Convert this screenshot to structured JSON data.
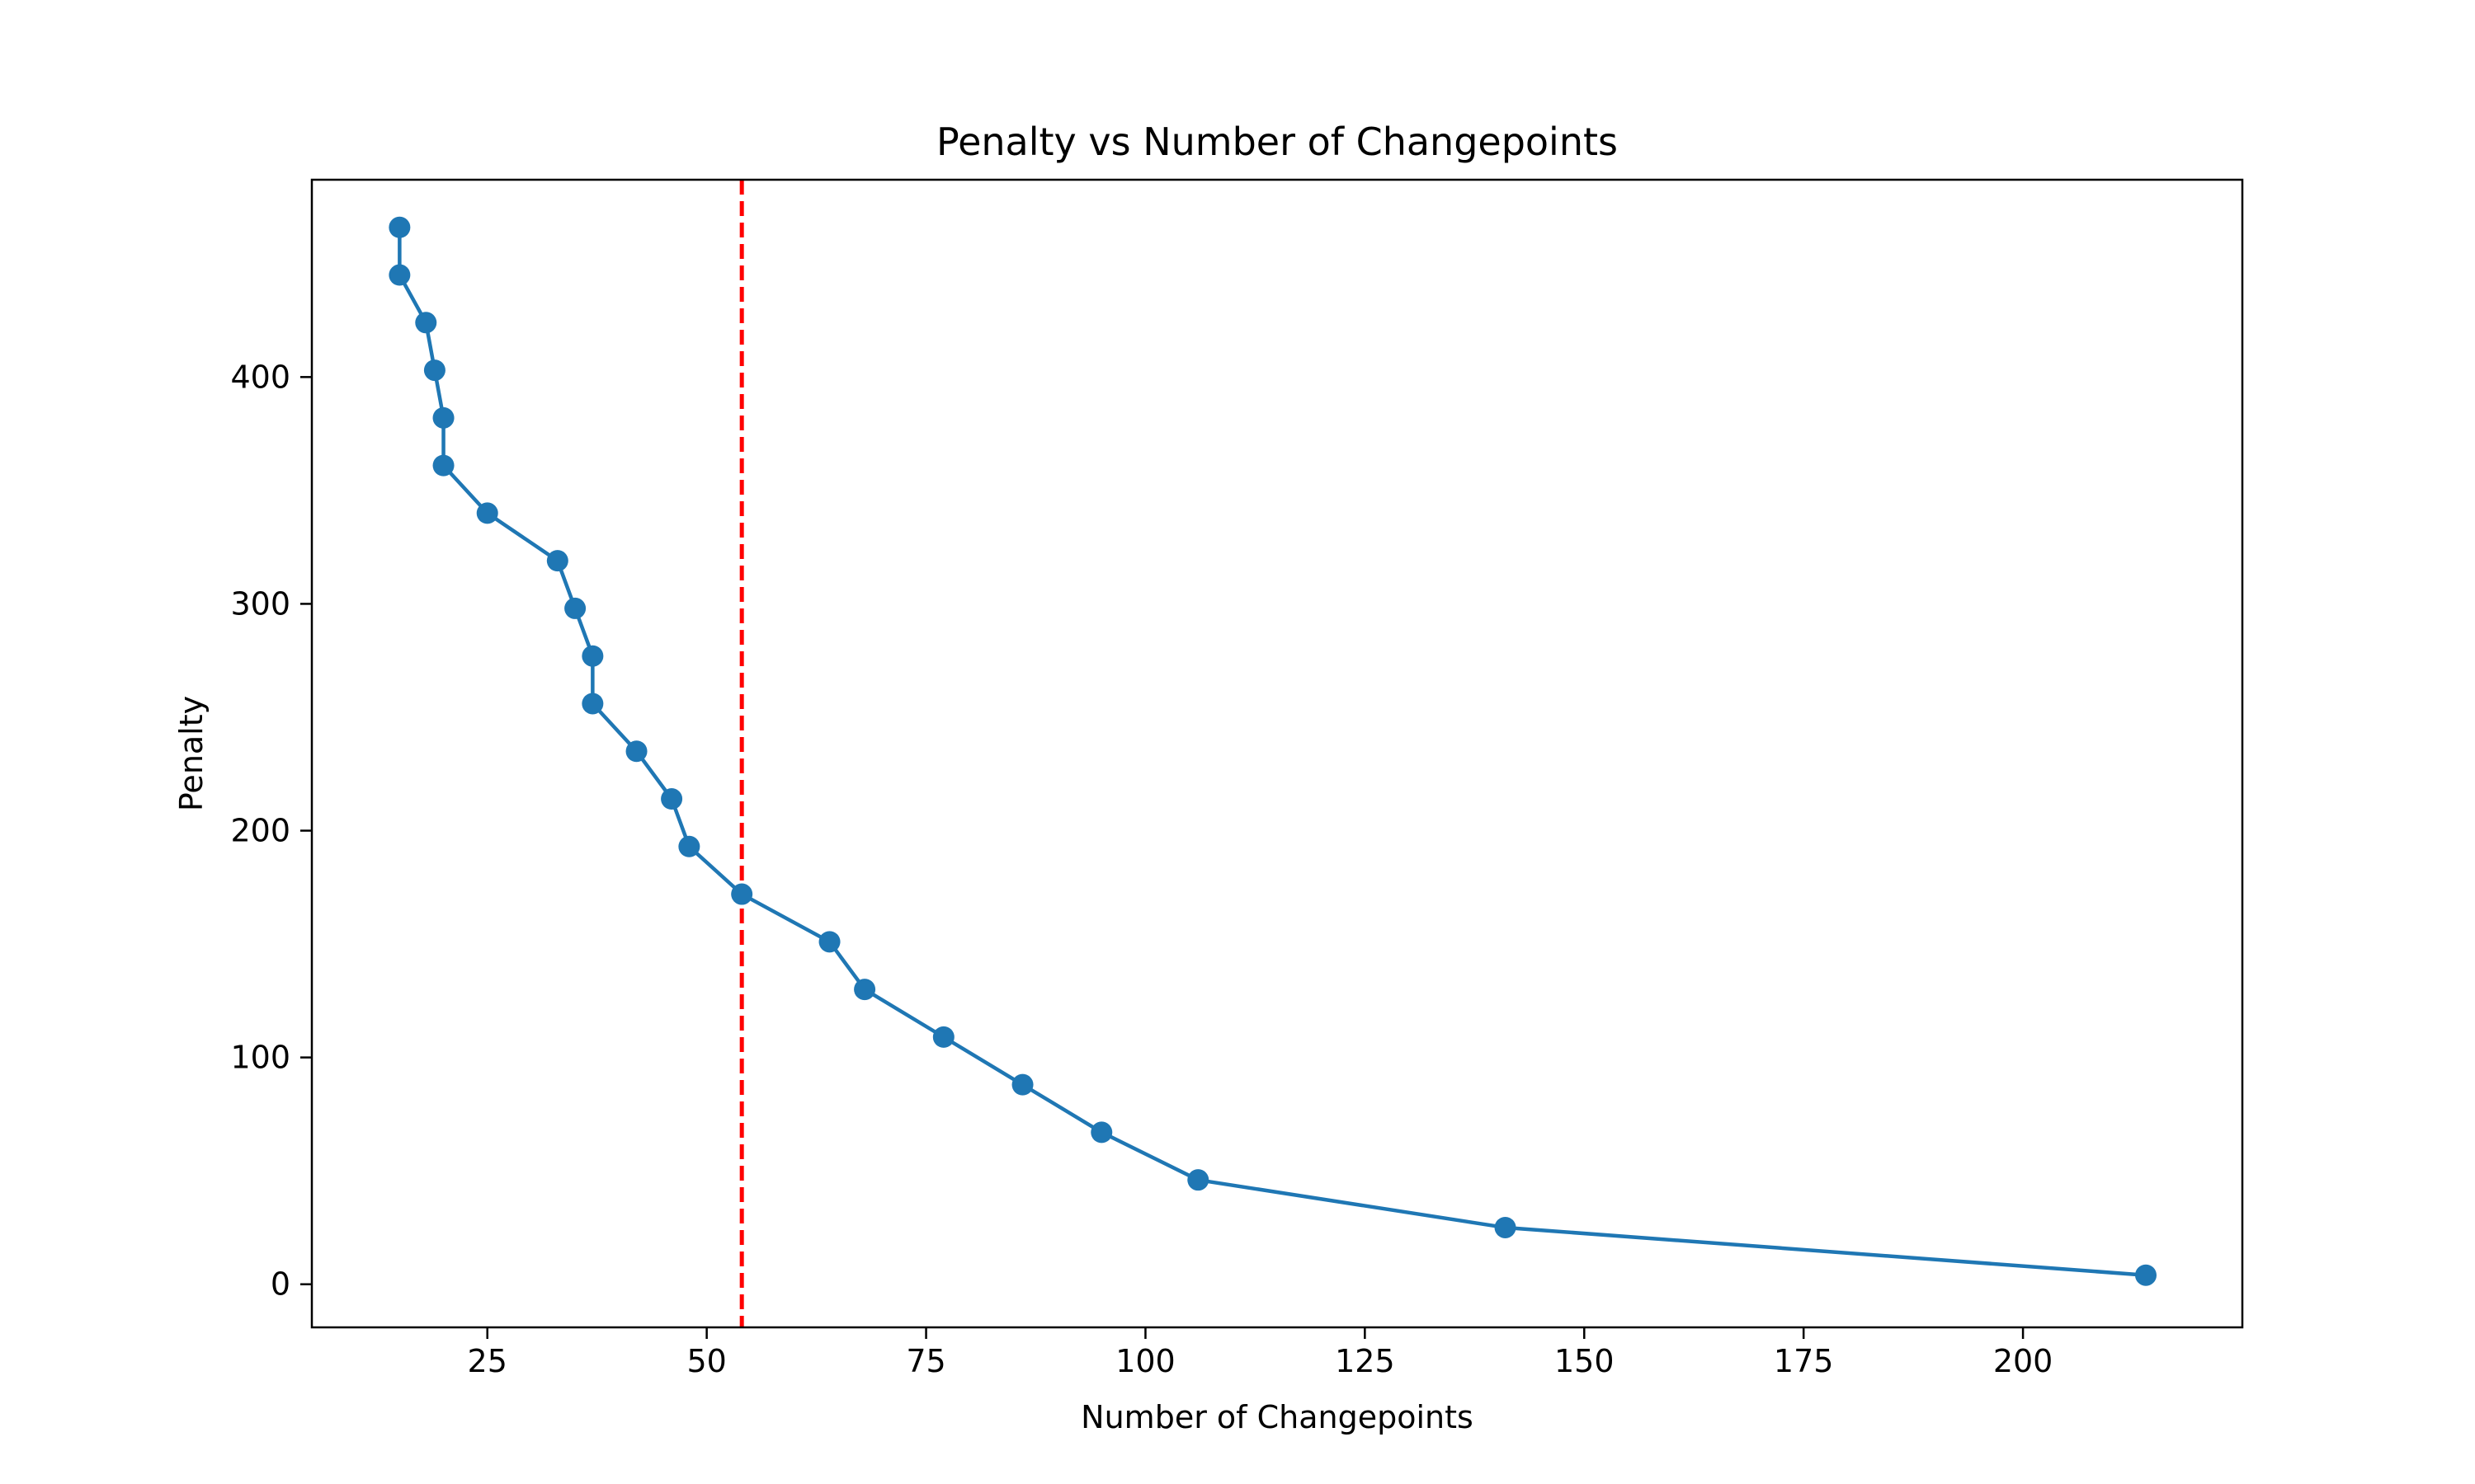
{
  "chart_data": {
    "type": "line",
    "title": "Penalty vs Number of Changepoints",
    "xlabel": "Number of Changepoints",
    "ylabel": "Penalty",
    "xlim": [
      5,
      225
    ],
    "ylim": [
      -19,
      487
    ],
    "xticks": [
      25,
      50,
      75,
      100,
      125,
      150,
      175,
      200
    ],
    "yticks": [
      0,
      100,
      200,
      300,
      400
    ],
    "grid": false,
    "legend": "none",
    "series": [
      {
        "color": "#1f77b4",
        "marker": "circle",
        "points": [
          {
            "x": 15,
            "y": 466
          },
          {
            "x": 15,
            "y": 445
          },
          {
            "x": 18,
            "y": 424
          },
          {
            "x": 19,
            "y": 403
          },
          {
            "x": 20,
            "y": 382
          },
          {
            "x": 20,
            "y": 361
          },
          {
            "x": 25,
            "y": 340
          },
          {
            "x": 33,
            "y": 319
          },
          {
            "x": 35,
            "y": 298
          },
          {
            "x": 37,
            "y": 277
          },
          {
            "x": 37,
            "y": 256
          },
          {
            "x": 42,
            "y": 235
          },
          {
            "x": 46,
            "y": 214
          },
          {
            "x": 48,
            "y": 193
          },
          {
            "x": 54,
            "y": 172
          },
          {
            "x": 64,
            "y": 151
          },
          {
            "x": 68,
            "y": 130
          },
          {
            "x": 77,
            "y": 109
          },
          {
            "x": 86,
            "y": 88
          },
          {
            "x": 95,
            "y": 67
          },
          {
            "x": 106,
            "y": 46
          },
          {
            "x": 141,
            "y": 25
          },
          {
            "x": 214,
            "y": 4
          }
        ]
      }
    ],
    "reference_lines": [
      {
        "orientation": "vertical",
        "x": 54,
        "color": "#ff0000",
        "style": "dashed"
      }
    ]
  }
}
